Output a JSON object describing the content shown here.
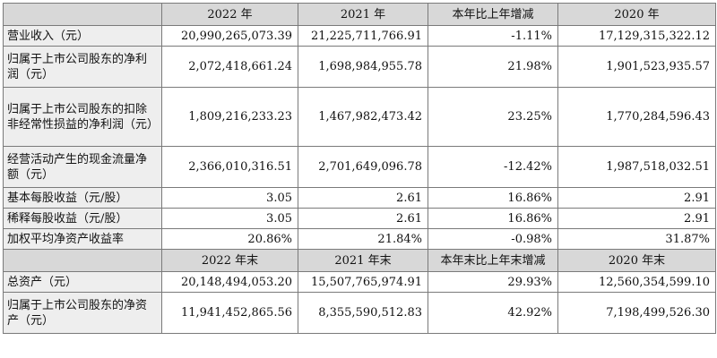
{
  "header1": [
    "2022 年",
    "2021 年",
    "本年比上年增减",
    "2020 年"
  ],
  "rows1": [
    {
      "label": "营业收入（元）",
      "values": [
        "20,990,265,073.39",
        "21,225,711,766.91",
        "-1.11%",
        "17,129,315,322.12"
      ]
    },
    {
      "label": "归属于上市公司股东的净利润（元）",
      "values": [
        "2,072,418,661.24",
        "1,698,984,955.78",
        "21.98%",
        "1,901,523,935.57"
      ]
    },
    {
      "label": "归属于上市公司股东的扣除非经常性损益的净利润（元）",
      "values": [
        "1,809,216,233.23",
        "1,467,982,473.42",
        "23.25%",
        "1,770,284,596.43"
      ]
    },
    {
      "label": "经营活动产生的现金流量净额（元）",
      "values": [
        "2,366,010,316.51",
        "2,701,649,096.78",
        "-12.42%",
        "1,987,518,032.51"
      ]
    },
    {
      "label": "基本每股收益（元/股）",
      "values": [
        "3.05",
        "2.61",
        "16.86%",
        "2.91"
      ]
    },
    {
      "label": "稀释每股收益（元/股）",
      "values": [
        "3.05",
        "2.61",
        "16.86%",
        "2.91"
      ]
    },
    {
      "label": "加权平均净资产收益率",
      "values": [
        "20.86%",
        "21.84%",
        "-0.98%",
        "31.87%"
      ]
    }
  ],
  "header2": [
    "2022 年末",
    "2021 年末",
    "本年末比上年末增减",
    "2020 年末"
  ],
  "rows2": [
    {
      "label": "总资产（元）",
      "values": [
        "20,148,494,053.20",
        "15,507,765,974.91",
        "29.93%",
        "12,560,354,599.10"
      ]
    },
    {
      "label": "归属于上市公司股东的净资产（元）",
      "values": [
        "11,941,452,865.56",
        "8,355,590,512.83",
        "42.92%",
        "7,198,499,526.30"
      ]
    }
  ]
}
